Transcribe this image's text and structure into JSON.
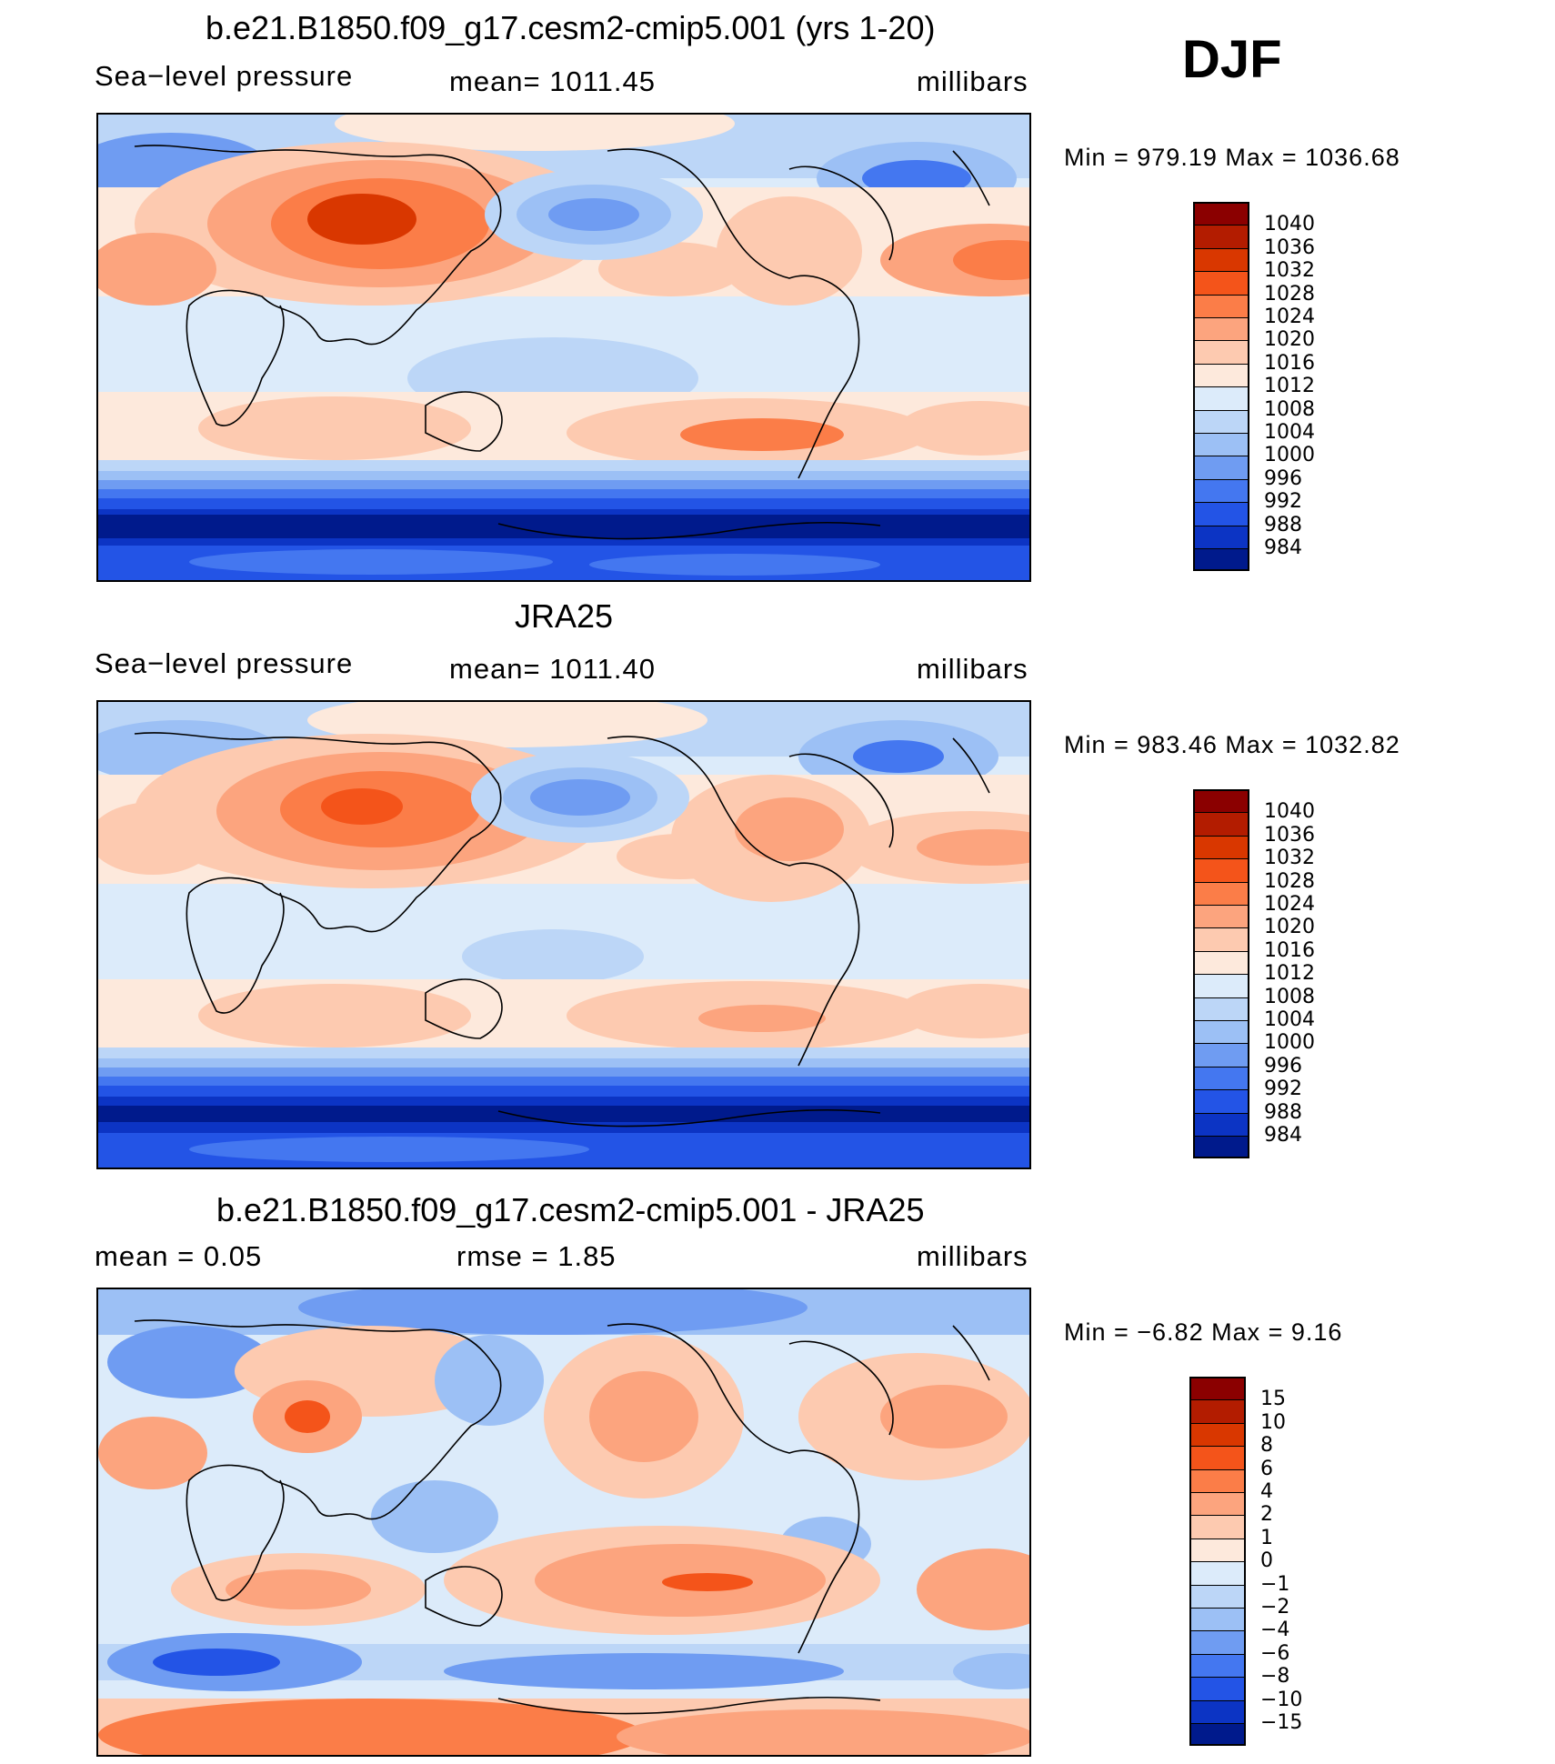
{
  "season": "DJF",
  "units": "millibars",
  "panels": [
    {
      "title": "b.e21.B1850.f09_g17.cesm2-cmip5.001 (yrs 1-20)",
      "field": "Sea−level pressure",
      "stat": "mean=  1011.45",
      "units": "millibars",
      "minmax": "Min  =  979.19  Max  =  1036.68"
    },
    {
      "title": "JRA25",
      "field": "Sea−level pressure",
      "stat": "mean=  1011.40",
      "units": "millibars",
      "minmax": "Min  =  983.46  Max  =  1032.82"
    },
    {
      "title": "b.e21.B1850.f09_g17.cesm2-cmip5.001 - JRA25",
      "field": "mean  =      0.05",
      "stat": "rmse  =      1.85",
      "units": "millibars",
      "minmax": "Min  =   −6.82  Max  =      9.16"
    }
  ],
  "colorbars": {
    "slp_levels": [
      "1040",
      "1036",
      "1032",
      "1028",
      "1024",
      "1020",
      "1016",
      "1012",
      "1008",
      "1004",
      "1000",
      "996",
      "992",
      "988",
      "984"
    ],
    "slp_colors": [
      "#8b0000",
      "#b31c00",
      "#d93700",
      "#f4541a",
      "#fb7d48",
      "#fca47e",
      "#fdcab0",
      "#fde9dc",
      "#dcebfa",
      "#bcd6f7",
      "#9cc0f5",
      "#6f9cf2",
      "#4477f0",
      "#2354e6",
      "#0c34c4",
      "#001a8c"
    ],
    "diff_levels": [
      "15",
      "10",
      "8",
      "6",
      "4",
      "2",
      "1",
      "0",
      "−1",
      "−2",
      "−4",
      "−6",
      "−8",
      "−10",
      "−15"
    ],
    "diff_colors": [
      "#8b0000",
      "#b31c00",
      "#d93700",
      "#f4541a",
      "#fb7d48",
      "#fca47e",
      "#fdcab0",
      "#fde9dc",
      "#dcebfa",
      "#bcd6f7",
      "#9cc0f5",
      "#6f9cf2",
      "#4477f0",
      "#2354e6",
      "#0c34c4",
      "#001a8c"
    ]
  }
}
